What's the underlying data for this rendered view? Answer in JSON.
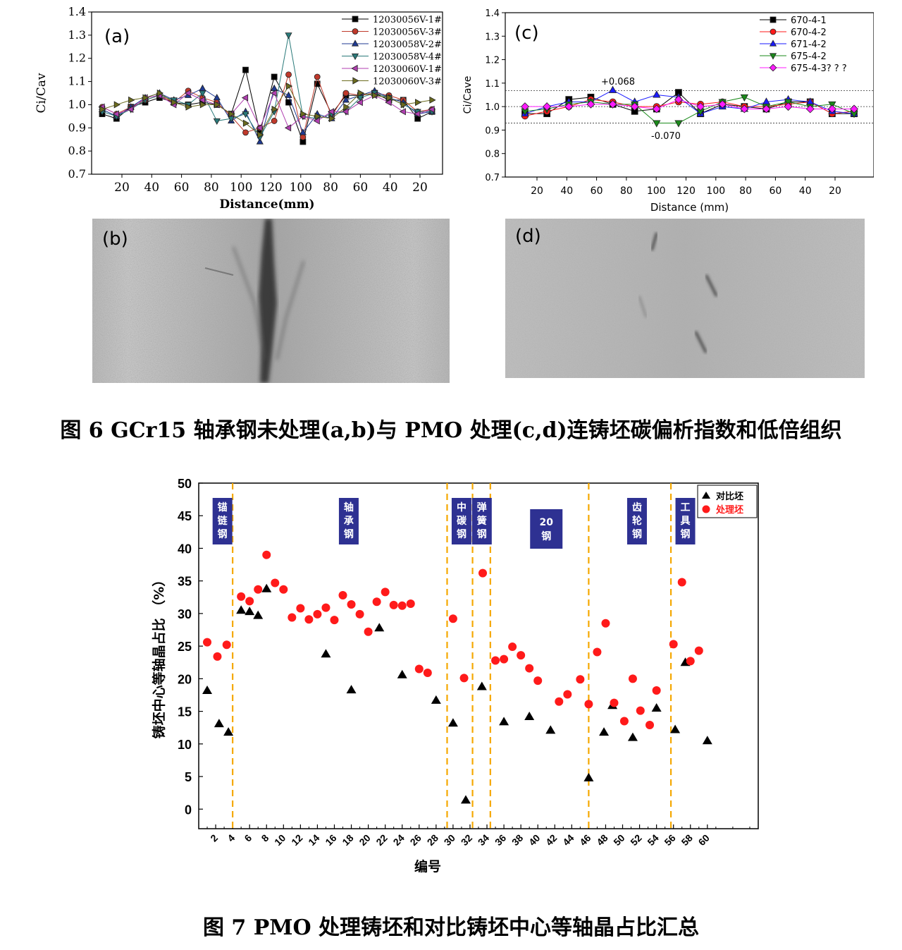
{
  "figure6": {
    "caption": "图 6 GCr15 轴承钢未处理(a,b)与 PMO 处理(c,d)连铸坯碳偏析指数和低倍组织",
    "panel_b_label": "(b)",
    "panel_d_label": "(d)"
  },
  "figure7": {
    "caption": "图 7 PMO 处理铸坯和对比铸坯中心等轴晶占比汇总"
  },
  "chart_data": [
    {
      "id": "a",
      "type": "line",
      "panel_label": "(a)",
      "ylabel": "Ci/Cav",
      "xlabel": "Distance(mm)",
      "ylim": [
        0.7,
        1.4
      ],
      "yticks": [
        "0.7",
        "0.8",
        "0.9",
        "1.0",
        "1.1",
        "1.2",
        "1.3",
        "1.4"
      ],
      "xtick_labels": [
        "20",
        "40",
        "60",
        "80",
        "100",
        "120",
        "100",
        "80",
        "60",
        "40",
        "20"
      ],
      "x": [
        1,
        2,
        3,
        4,
        5,
        6,
        7,
        8,
        9,
        10,
        11,
        12,
        13,
        14,
        15,
        16,
        17,
        18,
        19,
        20,
        21,
        22,
        23,
        24
      ],
      "series": [
        {
          "name": "12030056V-1#",
          "color": "#000000",
          "marker": "square",
          "values": [
            0.96,
            0.94,
            0.99,
            1.01,
            1.03,
            1.01,
            1.0,
            1.01,
            1.0,
            0.96,
            1.15,
            0.88,
            1.12,
            1.01,
            0.84,
            1.09,
            0.96,
            1.04,
            1.04,
            1.05,
            1.02,
            1.02,
            0.94,
            0.97
          ]
        },
        {
          "name": "12030056V-3#",
          "color": "#c0392b",
          "marker": "circle",
          "values": [
            0.99,
            0.96,
            0.99,
            1.02,
            1.04,
            1.01,
            1.06,
            1.03,
            1.01,
            0.95,
            0.88,
            0.9,
            0.93,
            1.13,
            0.86,
            1.12,
            0.95,
            1.05,
            1.04,
            1.05,
            1.04,
            1.02,
            0.97,
            0.98
          ]
        },
        {
          "name": "12030058V-2#",
          "color": "#1f3a93",
          "marker": "triangle-up",
          "values": [
            0.98,
            0.95,
            0.99,
            1.03,
            1.05,
            1.02,
            1.04,
            1.07,
            1.03,
            0.93,
            0.97,
            0.84,
            1.07,
            1.04,
            0.88,
            0.96,
            0.94,
            1.02,
            1.04,
            1.06,
            1.03,
            1.01,
            0.96,
            0.97
          ]
        },
        {
          "name": "12030058V-4#",
          "color": "#2a7a7a",
          "marker": "triangle-down",
          "values": [
            0.97,
            0.95,
            0.98,
            1.02,
            1.04,
            1.02,
            1.0,
            1.05,
            0.93,
            0.94,
            0.96,
            0.86,
            0.97,
            1.3,
            0.95,
            0.94,
            0.96,
            0.97,
            1.03,
            1.05,
            1.03,
            1.0,
            0.97,
            0.97
          ]
        },
        {
          "name": "12030060V-1#",
          "color": "#b03fb0",
          "marker": "triangle-left",
          "values": [
            0.99,
            0.96,
            0.98,
            1.03,
            1.04,
            1.0,
            1.05,
            1.02,
            1.0,
            0.96,
            1.03,
            0.9,
            1.05,
            0.9,
            0.95,
            0.93,
            0.97,
            0.97,
            1.01,
            1.04,
            1.01,
            0.97,
            0.96,
            0.98
          ]
        },
        {
          "name": "12030060V-3#",
          "color": "#6b6b1e",
          "marker": "triangle-right",
          "values": [
            0.98,
            1.0,
            1.02,
            1.03,
            1.05,
            1.01,
            0.99,
            1.0,
            1.0,
            0.96,
            0.92,
            0.87,
            0.98,
            1.08,
            0.96,
            0.95,
            0.94,
            0.99,
            1.05,
            1.04,
            1.03,
            1.0,
            1.01,
            1.02
          ]
        }
      ]
    },
    {
      "id": "c",
      "type": "line",
      "panel_label": "(c)",
      "ylabel": "Ci/Cave",
      "xlabel": "Distance (mm)",
      "ylim": [
        0.7,
        1.4
      ],
      "yticks": [
        "0.7",
        "0.8",
        "0.9",
        "1.0",
        "1.1",
        "1.2",
        "1.3",
        "1.4"
      ],
      "xtick_labels": [
        "20",
        "40",
        "60",
        "80",
        "100",
        "120",
        "100",
        "80",
        "60",
        "40",
        "20"
      ],
      "annotations": [
        "+0.068",
        "-0.070"
      ],
      "reference_lines": [
        1.068,
        1.0,
        0.93
      ],
      "x": [
        1,
        2,
        3,
        4,
        5,
        6,
        7,
        8,
        9,
        10,
        11,
        12,
        13,
        14,
        15,
        16
      ],
      "series": [
        {
          "name": "670-4-1",
          "color": "#000000",
          "marker": "square",
          "values": [
            0.97,
            0.97,
            1.03,
            1.04,
            1.01,
            0.98,
            0.99,
            1.06,
            0.97,
            1.01,
            1.0,
            0.99,
            1.02,
            1.02,
            0.97,
            0.97
          ]
        },
        {
          "name": "670-4-2",
          "color": "#ff1a1a",
          "marker": "circle",
          "values": [
            0.96,
            0.98,
            1.0,
            1.03,
            1.02,
            1.0,
            1.0,
            1.02,
            1.01,
            1.02,
            1.0,
            1.0,
            1.01,
            1.02,
            0.97,
            0.98
          ]
        },
        {
          "name": "671-4-2",
          "color": "#1a1aff",
          "marker": "triangle-up",
          "values": [
            0.97,
            1.0,
            1.02,
            1.02,
            1.07,
            1.02,
            1.05,
            1.04,
            0.97,
            1.0,
            0.99,
            1.02,
            1.03,
            1.02,
            0.98,
            0.97
          ]
        },
        {
          "name": "675-4-2",
          "color": "#1a8a1a",
          "marker": "triangle-down",
          "values": [
            0.98,
            0.99,
            1.01,
            1.02,
            1.01,
            1.01,
            0.93,
            0.93,
            0.98,
            1.02,
            1.04,
            1.0,
            1.02,
            1.0,
            1.01,
            0.97
          ]
        },
        {
          "name": "675-4-3? ? ?",
          "color": "#ff1aff",
          "marker": "diamond",
          "values": [
            1.0,
            1.0,
            1.0,
            1.01,
            1.01,
            1.0,
            0.99,
            1.03,
            1.0,
            1.01,
            0.99,
            0.99,
            1.0,
            0.99,
            0.99,
            0.99
          ]
        }
      ]
    },
    {
      "id": "fig7",
      "type": "scatter",
      "xlabel": "编号",
      "ylabel": "铸坯中心等轴晶占比 （%）",
      "ylim": [
        -3,
        50
      ],
      "yticks": [
        0,
        5,
        10,
        15,
        20,
        25,
        30,
        35,
        40,
        45,
        50
      ],
      "xlim": [
        0,
        66
      ],
      "xticks": [
        2,
        4,
        6,
        8,
        10,
        12,
        14,
        16,
        18,
        20,
        22,
        24,
        26,
        28,
        30,
        32,
        34,
        36,
        38,
        40,
        42,
        44,
        46,
        48,
        50,
        52,
        54,
        56,
        58,
        60
      ],
      "dividers": [
        4,
        29.3,
        32.3,
        34.4,
        46,
        55.7
      ],
      "groups": [
        {
          "label": "锚链钢",
          "x": 2.8
        },
        {
          "label": "轴承钢",
          "x": 17.7
        },
        {
          "label": "中碳钢",
          "x": 31
        },
        {
          "label": "弹簧钢",
          "x": 33.4
        },
        {
          "label": "20钢",
          "x": 41
        },
        {
          "label": "齿轮钢",
          "x": 51.7
        },
        {
          "label": "工具钢",
          "x": 57.4
        }
      ],
      "series": [
        {
          "name": "对比坯",
          "color": "#000000",
          "marker": "triangle",
          "points": [
            [
              1,
              18.2
            ],
            [
              2.4,
              13.1
            ],
            [
              3.5,
              11.8
            ],
            [
              5,
              30.5
            ],
            [
              6,
              30.3
            ],
            [
              7,
              29.7
            ],
            [
              8,
              33.8
            ],
            [
              15,
              23.8
            ],
            [
              18,
              18.3
            ],
            [
              21.3,
              27.8
            ],
            [
              24,
              20.6
            ],
            [
              28,
              16.7
            ],
            [
              30,
              13.2
            ],
            [
              31.5,
              1.4
            ],
            [
              33.4,
              18.8
            ],
            [
              36,
              13.4
            ],
            [
              39,
              14.2
            ],
            [
              41.5,
              12.1
            ],
            [
              46,
              4.8
            ],
            [
              47.8,
              11.8
            ],
            [
              48.8,
              15.9
            ],
            [
              51.2,
              11.0
            ],
            [
              54,
              15.5
            ],
            [
              56.2,
              12.2
            ],
            [
              57.4,
              22.5
            ],
            [
              60,
              10.5
            ]
          ]
        },
        {
          "name": "处理坯",
          "color": "#ff1a1a",
          "marker": "circle",
          "points": [
            [
              1,
              25.6
            ],
            [
              2.2,
              23.4
            ],
            [
              3.3,
              25.2
            ],
            [
              5,
              32.6
            ],
            [
              6,
              31.9
            ],
            [
              7,
              33.7
            ],
            [
              8,
              39.0
            ],
            [
              9,
              34.7
            ],
            [
              10,
              33.7
            ],
            [
              11,
              29.4
            ],
            [
              12,
              30.8
            ],
            [
              13,
              29.1
            ],
            [
              14,
              29.9
            ],
            [
              15,
              30.9
            ],
            [
              16,
              29.0
            ],
            [
              17,
              32.8
            ],
            [
              18,
              31.4
            ],
            [
              19,
              29.9
            ],
            [
              20,
              27.2
            ],
            [
              21,
              31.8
            ],
            [
              22,
              33.3
            ],
            [
              23,
              31.3
            ],
            [
              24,
              31.2
            ],
            [
              25,
              31.5
            ],
            [
              26,
              21.5
            ],
            [
              27,
              20.9
            ],
            [
              30,
              29.2
            ],
            [
              31.3,
              20.1
            ],
            [
              33.5,
              36.2
            ],
            [
              35,
              22.8
            ],
            [
              36,
              23.0
            ],
            [
              37,
              24.9
            ],
            [
              38,
              23.6
            ],
            [
              39,
              21.6
            ],
            [
              40,
              19.7
            ],
            [
              42.5,
              16.5
            ],
            [
              43.5,
              17.6
            ],
            [
              45,
              19.9
            ],
            [
              46,
              16.1
            ],
            [
              47,
              24.1
            ],
            [
              48,
              28.5
            ],
            [
              49,
              16.3
            ],
            [
              50.2,
              13.5
            ],
            [
              51.2,
              20.0
            ],
            [
              52.1,
              15.1
            ],
            [
              53.2,
              12.9
            ],
            [
              54,
              18.2
            ],
            [
              56,
              25.3
            ],
            [
              57,
              34.8
            ],
            [
              58,
              22.7
            ],
            [
              59,
              24.3
            ]
          ]
        }
      ]
    }
  ]
}
